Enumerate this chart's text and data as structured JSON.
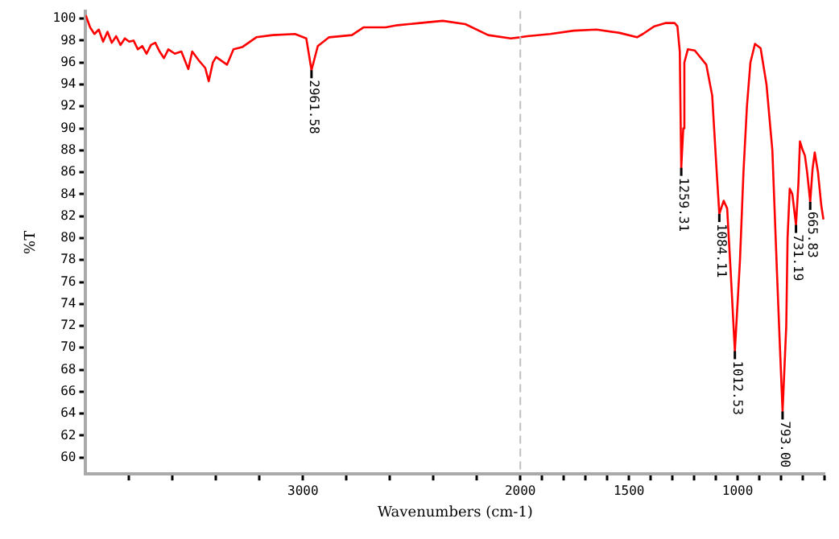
{
  "chart_data": {
    "type": "line",
    "xlabel": "Wavenumbers (cm-1)",
    "ylabel": "%T",
    "x": [
      4000,
      3980,
      3960,
      3940,
      3920,
      3900,
      3880,
      3860,
      3840,
      3820,
      3800,
      3780,
      3760,
      3740,
      3720,
      3700,
      3680,
      3660,
      3640,
      3620,
      3590,
      3560,
      3528,
      3510,
      3480,
      3450,
      3434,
      3415,
      3400,
      3350,
      3320,
      3280,
      3215,
      3140,
      3037,
      2985,
      2961,
      2932,
      2880,
      2775,
      2722,
      2620,
      2565,
      2462,
      2357,
      2253,
      2148,
      2044,
      2000,
      1968,
      1862,
      1755,
      1649,
      1543,
      1463,
      1436,
      1383,
      1330,
      1290,
      1277,
      1266,
      1259.31,
      1250,
      1245,
      1229,
      1197,
      1144,
      1117,
      1096,
      1084.11,
      1064,
      1048,
      1032,
      1012.53,
      989,
      973,
      957,
      941,
      920,
      894,
      867,
      840,
      819,
      805,
      793,
      776,
      770,
      760,
      748,
      731.19,
      720,
      713,
      700,
      690,
      680,
      665.83,
      655,
      645,
      630,
      615,
      605
    ],
    "series": [
      {
        "color": "#ff0000",
        "values": [
          100.3,
          99.2,
          98.6,
          99.0,
          97.9,
          98.8,
          97.8,
          98.4,
          97.6,
          98.2,
          97.9,
          98.0,
          97.2,
          97.5,
          96.8,
          97.6,
          97.8,
          97.0,
          96.4,
          97.2,
          96.8,
          97.0,
          95.4,
          97.0,
          96.2,
          95.5,
          94.3,
          96.0,
          96.5,
          95.8,
          97.2,
          97.4,
          98.3,
          98.5,
          98.6,
          98.2,
          95.3,
          97.5,
          98.3,
          98.5,
          99.2,
          99.2,
          99.4,
          99.6,
          99.8,
          99.5,
          98.5,
          98.2,
          98.3,
          98.4,
          98.6,
          98.9,
          99.0,
          98.7,
          98.3,
          98.6,
          99.3,
          99.6,
          99.6,
          99.3,
          97.0,
          86.4,
          90.0,
          96.0,
          97.2,
          97.1,
          95.8,
          93.0,
          86.0,
          82.2,
          83.4,
          82.7,
          77.0,
          69.7,
          78.0,
          86.0,
          92.0,
          96.0,
          97.7,
          97.3,
          94.0,
          88.0,
          77.0,
          70.0,
          64.2,
          72.0,
          80.0,
          84.5,
          84.0,
          81.2,
          85.0,
          88.8,
          88.0,
          87.5,
          86.0,
          83.3,
          86.3,
          87.8,
          86.0,
          83.0,
          81.7
        ]
      }
    ],
    "xlim": [
      4000,
      600
    ],
    "xticks": [
      {
        "value": 3800,
        "label": null
      },
      {
        "value": 3600,
        "label": null
      },
      {
        "value": 3400,
        "label": null
      },
      {
        "value": 3200,
        "label": null
      },
      3000,
      {
        "value": 2800,
        "label": null
      },
      {
        "value": 2600,
        "label": null
      },
      {
        "value": 2400,
        "label": null
      },
      {
        "value": 2200,
        "label": null
      },
      2000,
      {
        "value": 1900,
        "label": null
      },
      {
        "value": 1800,
        "label": null
      },
      {
        "value": 1700,
        "label": null
      },
      {
        "value": 1600,
        "label": null
      },
      1500,
      {
        "value": 1400,
        "label": null
      },
      {
        "value": 1300,
        "label": null
      },
      {
        "value": 1200,
        "label": null
      },
      {
        "value": 1100,
        "label": null
      },
      1000,
      {
        "value": 900,
        "label": null
      },
      {
        "value": 800,
        "label": null
      },
      {
        "value": 700,
        "label": null
      },
      {
        "value": 600,
        "label": null
      }
    ],
    "ylim": [
      58.5,
      100.7
    ],
    "yticks": [
      60,
      62,
      64,
      66,
      68,
      70,
      72,
      74,
      76,
      78,
      80,
      82,
      84,
      86,
      88,
      90,
      92,
      94,
      96,
      98,
      100
    ],
    "grid": false,
    "legend": false,
    "marker": "none",
    "ref_lines": [
      {
        "axis": "x",
        "value": 2000,
        "color": "#c0c0c0",
        "line_style": "dashed"
      }
    ],
    "annotations": [
      {
        "text": "2961.58",
        "x": 2961,
        "y": 95.3
      },
      {
        "text": "1259.31",
        "x": 1259.31,
        "y": 86.4
      },
      {
        "text": "1084.11",
        "x": 1084.11,
        "y": 82.2
      },
      {
        "text": "1012.53",
        "x": 1012.53,
        "y": 69.7
      },
      {
        "text": "793.00",
        "x": 793,
        "y": 64.2
      },
      {
        "text": "731.19",
        "x": 731.19,
        "y": 81.2
      },
      {
        "text": "665.83",
        "x": 665.83,
        "y": 83.3
      }
    ]
  }
}
